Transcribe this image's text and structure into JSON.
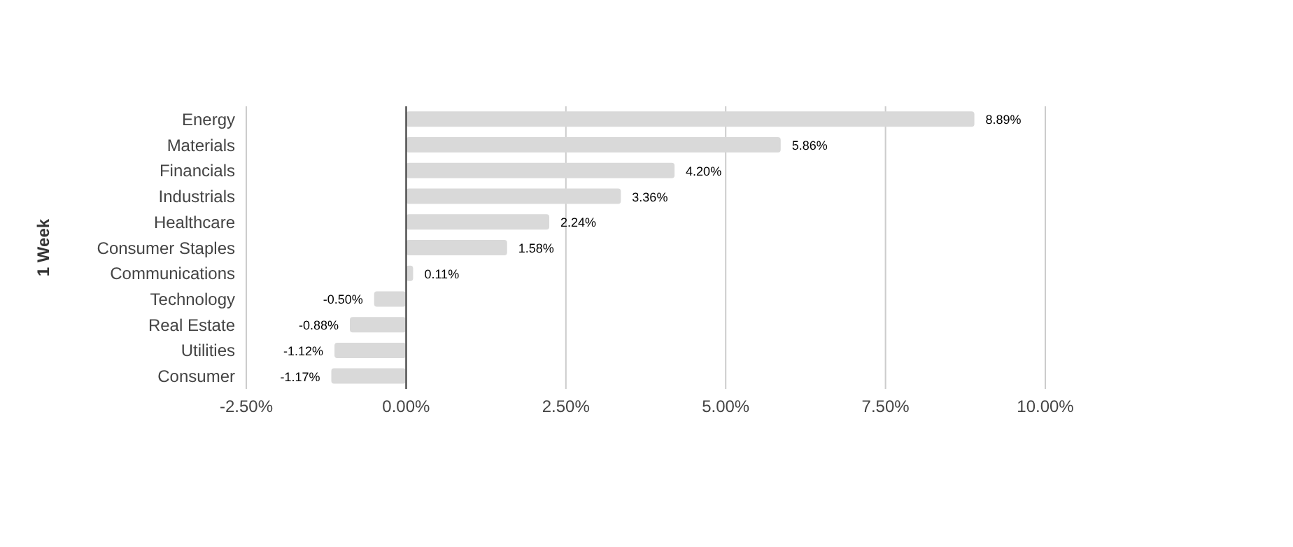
{
  "chart_data": {
    "type": "bar",
    "orientation": "horizontal",
    "ylabel": "1 Week",
    "categories": [
      "Energy",
      "Materials",
      "Financials",
      "Industrials",
      "Healthcare",
      "Consumer Staples",
      "Communications",
      "Technology",
      "Real Estate",
      "Utilities",
      "Consumer"
    ],
    "values": [
      8.89,
      5.86,
      4.2,
      3.36,
      2.24,
      1.58,
      0.11,
      -0.5,
      -0.88,
      -1.12,
      -1.17
    ],
    "value_labels": [
      "8.89%",
      "5.86%",
      "4.20%",
      "3.36%",
      "2.24%",
      "1.58%",
      "0.11%",
      "-0.50%",
      "-0.88%",
      "-1.12%",
      "-1.17%"
    ],
    "color": "#d9d9d9",
    "xlim": [
      -2.5,
      10
    ],
    "xticks": [
      {
        "value": -2.5,
        "label": "-2.50%"
      },
      {
        "value": 0,
        "label": "0.00%"
      },
      {
        "value": 2.5,
        "label": "2.50%"
      },
      {
        "value": 5,
        "label": "5.00%"
      },
      {
        "value": 7.5,
        "label": "7.50%"
      },
      {
        "value": 10,
        "label": "10.00%"
      }
    ],
    "grid": "x",
    "legend": false
  }
}
